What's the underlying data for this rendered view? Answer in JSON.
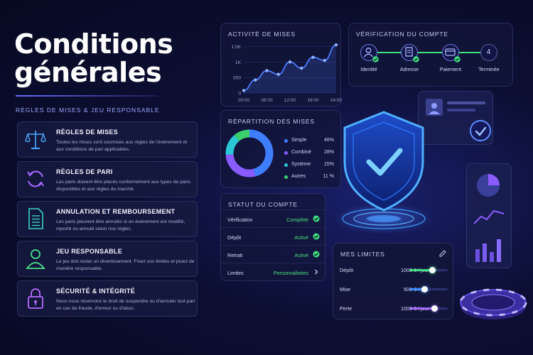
{
  "header": {
    "title_line1": "Conditions",
    "title_line2": "générales",
    "subtitle": "Règles de mises & jeu responsable"
  },
  "cards": [
    {
      "title": "Règles de mises",
      "description": "Toutes les mises sont soumises aux règles de l'événement et aux conditions de pari applicables.",
      "icon": "scales-icon",
      "color": "#4aa8ff"
    },
    {
      "title": "Règles de pari",
      "description": "Les paris doivent être placés conformément aux types de paris disponibles et aux règles du marché.",
      "icon": "refresh-icon",
      "color": "#a66bff"
    },
    {
      "title": "Annulation et remboursement",
      "description": "Les paris peuvent être annulés si un événement est modifié, reporté ou annulé selon nos règles.",
      "icon": "document-icon",
      "color": "#38d3c0"
    },
    {
      "title": "Jeu responsable",
      "description": "Le jeu doit rester un divertissement. Fixez vos limites et jouez de manière responsable.",
      "icon": "user-icon",
      "color": "#45e08a"
    },
    {
      "title": "Sécurité & intégrité",
      "description": "Nous nous réservons le droit de suspendre ou d'annuler tout pari en cas de fraude, d'erreur ou d'abus.",
      "icon": "lock-icon",
      "color": "#b46bff"
    }
  ],
  "activity": {
    "title": "Activité de mises"
  },
  "chart_data": {
    "type": "line",
    "x": [
      "00:00",
      "03:00",
      "06:00",
      "09:00",
      "12:00",
      "15:00",
      "18:00",
      "21:00",
      "24:00"
    ],
    "values": [
      80,
      420,
      720,
      600,
      1000,
      800,
      1150,
      1050,
      1550
    ],
    "y_ticks": [
      "0",
      "500",
      "1K",
      "1.5K"
    ],
    "x_ticks": [
      "00:00",
      "06:00",
      "12:00",
      "18:00",
      "24:00"
    ],
    "ylim": [
      0,
      1600
    ],
    "title": "Activité de mises",
    "color": "#4d7cff"
  },
  "repartition": {
    "title": "Répartition des mises",
    "items": [
      {
        "label": "Simple",
        "value": "46%",
        "pct": 46,
        "color": "#3f7dff"
      },
      {
        "label": "Combiné",
        "value": "28%",
        "pct": 28,
        "color": "#8a5cff"
      },
      {
        "label": "Système",
        "value": "15%",
        "pct": 15,
        "color": "#2bc7d6"
      },
      {
        "label": "Autres",
        "value": "11 %",
        "pct": 11,
        "color": "#3ccf6e"
      }
    ]
  },
  "status": {
    "title": "Statut du compte",
    "rows": [
      {
        "label": "Vérification",
        "value": "Complète",
        "icon": "check-icon"
      },
      {
        "label": "Dépôt",
        "value": "Activé",
        "icon": "check-icon"
      },
      {
        "label": "Retrait",
        "value": "Activé",
        "icon": "check-icon"
      },
      {
        "label": "Limites",
        "value": "Personnalisées",
        "icon": "chevron-right-icon"
      }
    ]
  },
  "verification": {
    "title": "Vérification du compte",
    "steps": [
      {
        "label": "Identité",
        "icon": "user-icon",
        "done": true
      },
      {
        "label": "Adresse",
        "icon": "document-icon",
        "done": true
      },
      {
        "label": "Paiement",
        "icon": "card-icon",
        "done": true
      },
      {
        "label": "Terminée",
        "number": "4",
        "done": false
      }
    ]
  },
  "limits": {
    "title": "Mes limites",
    "rows": [
      {
        "label": "Dépôt",
        "value": "1000 € / jour",
        "level": 0.6,
        "color": "#3fe07f"
      },
      {
        "label": "Mise",
        "value": "500 € / pari",
        "level": 0.4,
        "color": "#3f8cff"
      },
      {
        "label": "Perte",
        "value": "1000 € / jour",
        "level": 0.65,
        "color": "#a56bff"
      }
    ]
  },
  "colors": {
    "accent": "#6a6cff",
    "success": "#3fe07f",
    "shield": "#3fa0ff"
  }
}
